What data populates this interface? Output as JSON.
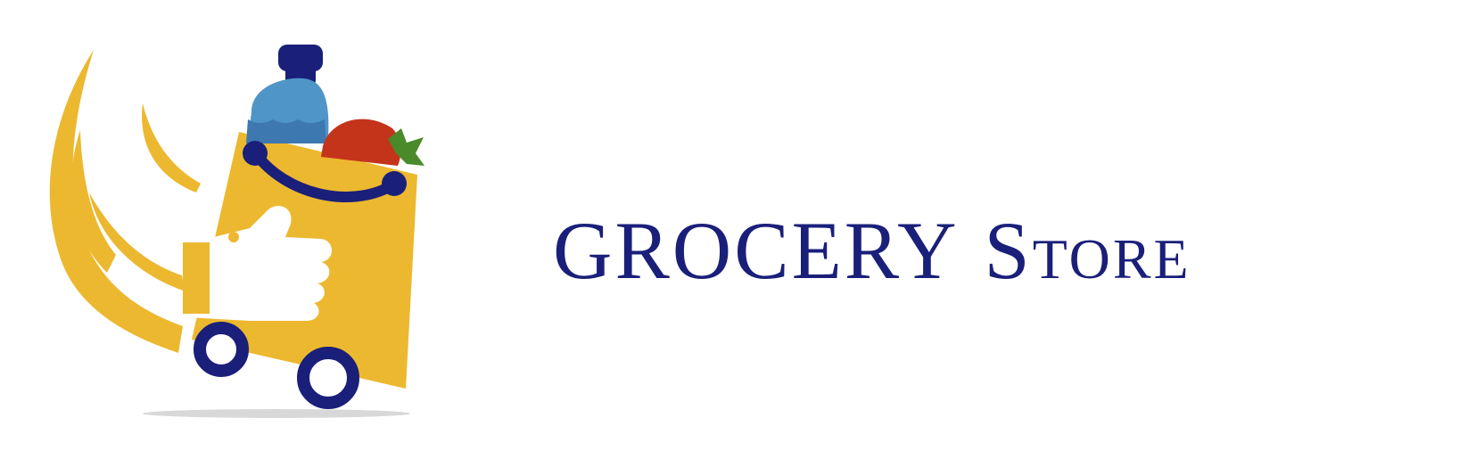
{
  "brand": {
    "name_part1": "GROCERY",
    "name_part2": "Store",
    "primary_color": "#1a1f7a",
    "accent_color": "#ecb82f"
  },
  "logo": {
    "icon_name": "grocery-bag-cart-icon",
    "elements": [
      "water-bottle-icon",
      "tomato-icon",
      "thumbs-up-icon",
      "cart-wheel-icon"
    ],
    "colors": {
      "bag": "#ecb82f",
      "bottle": "#4f95c8",
      "bottle_cap": "#1a1f7a",
      "tomato": "#c4341b",
      "tomato_leaf": "#4a8a2a",
      "wheels": "#1a1f7a"
    }
  }
}
